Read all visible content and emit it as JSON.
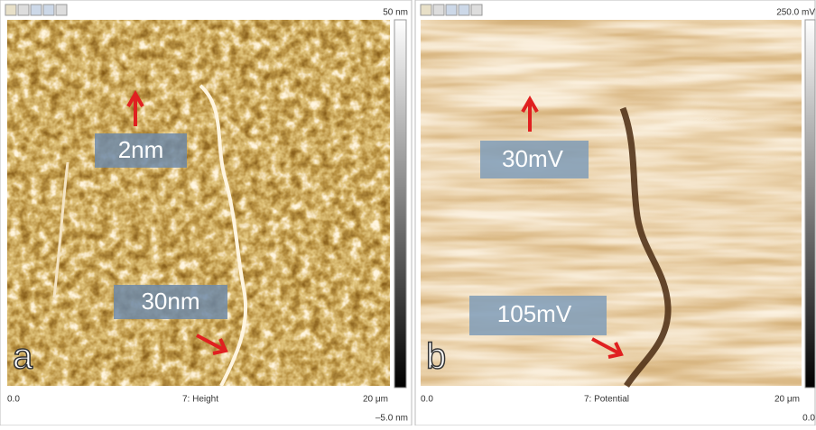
{
  "panels": [
    {
      "label": "a",
      "scale_max": "50 nm",
      "scale_min": "–5.0 nm",
      "x_start": "0.0",
      "channel": "7: Height",
      "x_end": "20 μm",
      "annotations": [
        "2nm",
        "30nm"
      ]
    },
    {
      "label": "b",
      "scale_max": "250.0 mV",
      "scale_min": "0.0",
      "x_start": "0.0",
      "channel": "7: Potential",
      "x_end": "20 μm",
      "annotations": [
        "30mV",
        "105mV"
      ]
    }
  ]
}
